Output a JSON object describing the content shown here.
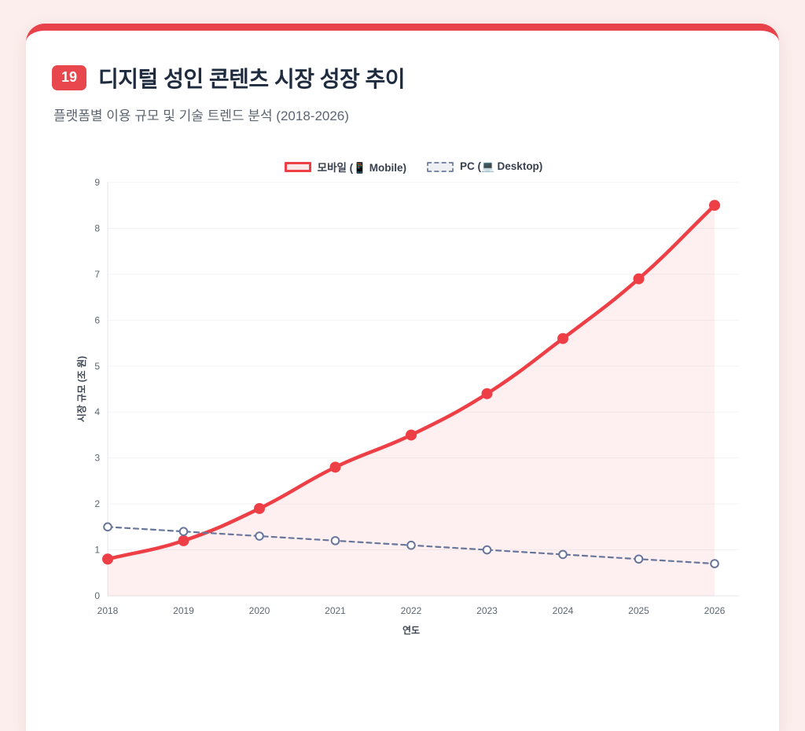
{
  "header": {
    "badge": "19",
    "title": "디지털 성인 콘텐츠 시장 성장 추이",
    "subtitle": "플랫폼별 이용 규모 및 기술 트렌드 분석 (2018-2026)"
  },
  "chart_data": {
    "type": "line",
    "x": [
      "2018",
      "2019",
      "2020",
      "2021",
      "2022",
      "2023",
      "2024",
      "2025",
      "2026"
    ],
    "series": [
      {
        "name": "모바일 (📱 Mobile)",
        "values": [
          0.8,
          1.2,
          1.9,
          2.8,
          3.5,
          4.4,
          5.6,
          6.9,
          8.5
        ],
        "color": "#ee3e46",
        "style": "solid",
        "dash": "",
        "line_width": 4.5,
        "fill": true,
        "fill_color": "rgba(238,62,70,0.08)",
        "point_radius": 7,
        "point_fill": "#ee3e46",
        "point_stroke_width": 0
      },
      {
        "name": "PC (💻 Desktop)",
        "values": [
          1.5,
          1.4,
          1.3,
          1.2,
          1.1,
          1.0,
          0.9,
          0.8,
          0.7
        ],
        "color": "#68769c",
        "style": "dashed",
        "dash": "6 5",
        "line_width": 2.2,
        "fill": false,
        "fill_color": "",
        "point_radius": 4.8,
        "point_fill": "#ffffff",
        "point_stroke_width": 2
      }
    ],
    "xlabel": "연도",
    "ylabel": "시장 규모 (조 원)",
    "ylim": [
      0,
      9
    ],
    "yticks": [
      0,
      1,
      2,
      3,
      4,
      5,
      6,
      7,
      8,
      9
    ],
    "tension": 0.4,
    "grid": "horizontal",
    "legend_position": "top"
  },
  "colors": {
    "accent_red": "#e8424a",
    "page_background": "#fbeeec",
    "card_background": "#ffffff",
    "pc_slate": "#68769c",
    "title_navy": "#1f2b3e",
    "grid_line": "#f1f3f7",
    "axis_border": "#e2e6ec"
  }
}
